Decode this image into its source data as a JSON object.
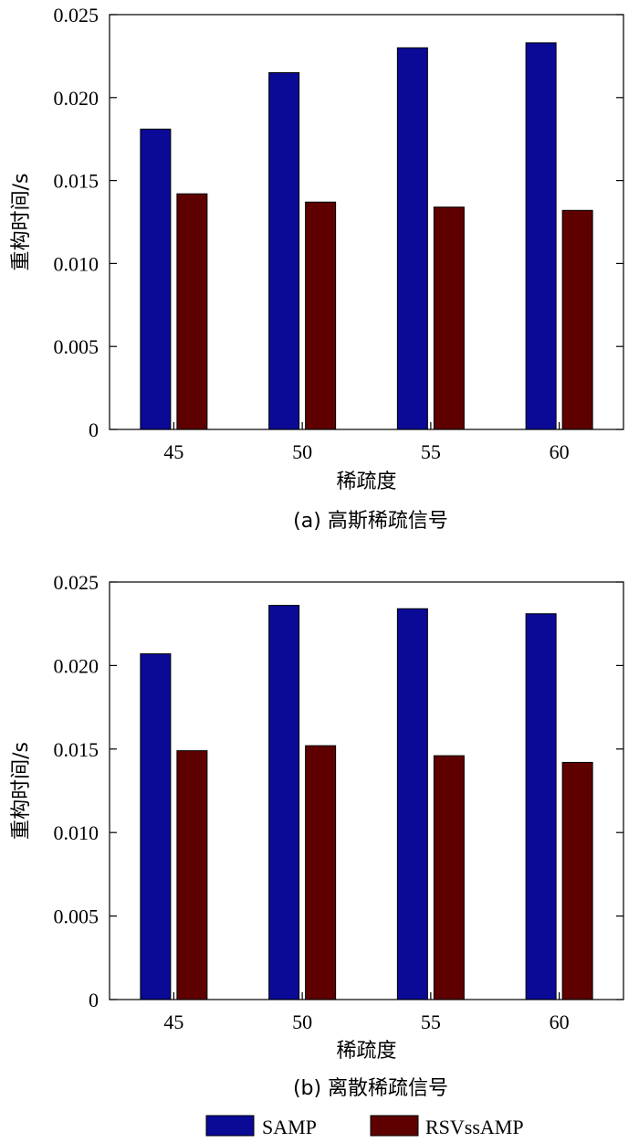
{
  "chart_data": [
    {
      "type": "bar",
      "caption": "(a) 高斯稀疏信号",
      "xlabel": "稀疏度",
      "ylabel": "重构时间/s",
      "categories": [
        "45",
        "50",
        "55",
        "60"
      ],
      "ylim": [
        0,
        0.025
      ],
      "yticks": [
        "0",
        "0.005",
        "0.010",
        "0.015",
        "0.020",
        "0.025"
      ],
      "series": [
        {
          "name": "SAMP",
          "values": [
            0.0181,
            0.0215,
            0.023,
            0.0233
          ]
        },
        {
          "name": "RSVssAMP",
          "values": [
            0.0142,
            0.0137,
            0.0134,
            0.0132
          ]
        }
      ]
    },
    {
      "type": "bar",
      "caption": "(b) 离散稀疏信号",
      "xlabel": "稀疏度",
      "ylabel": "重构时间/s",
      "categories": [
        "45",
        "50",
        "55",
        "60"
      ],
      "ylim": [
        0,
        0.025
      ],
      "yticks": [
        "0",
        "0.005",
        "0.010",
        "0.015",
        "0.020",
        "0.025"
      ],
      "series": [
        {
          "name": "SAMP",
          "values": [
            0.0207,
            0.0236,
            0.0234,
            0.0231
          ]
        },
        {
          "name": "RSVssAMP",
          "values": [
            0.0149,
            0.0152,
            0.0146,
            0.0142
          ]
        }
      ]
    }
  ],
  "legend": {
    "placement": "bottom",
    "items": [
      {
        "label": "SAMP",
        "color": "#0a0a96"
      },
      {
        "label": "RSVssAMP",
        "color": "#5e0000"
      }
    ]
  },
  "colors": {
    "SAMP": "#0a0a96",
    "RSVssAMP": "#5e0000"
  }
}
